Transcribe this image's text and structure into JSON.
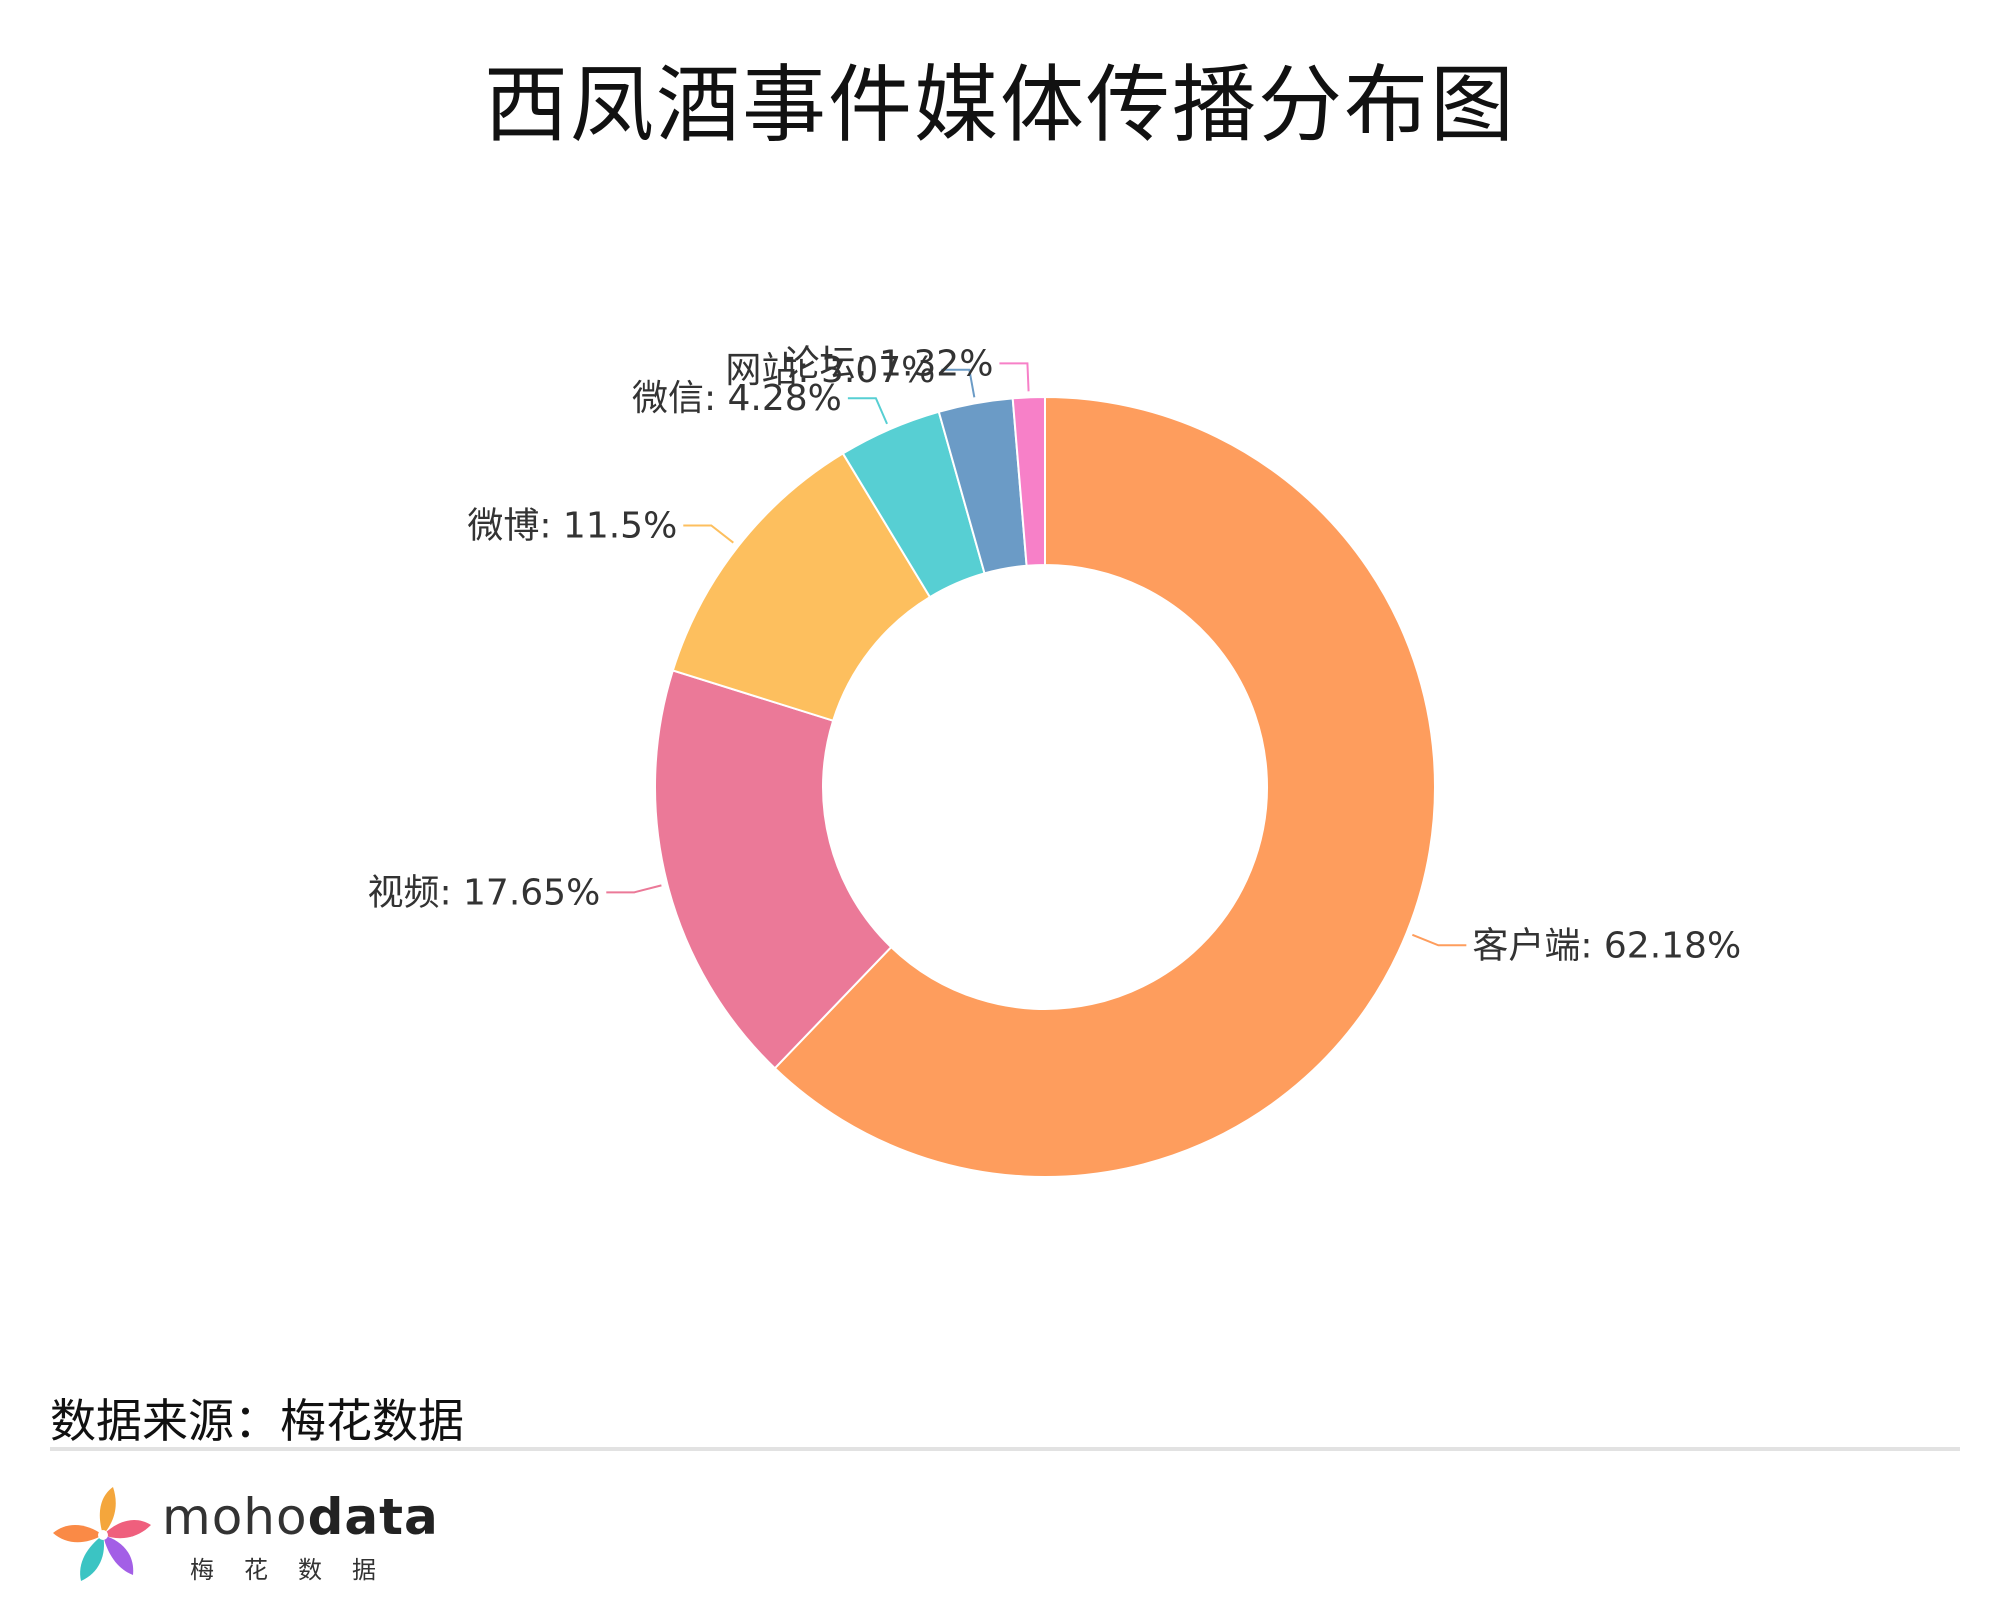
{
  "header": {
    "title": "西凤酒事件媒体传播分布图"
  },
  "chart_data": {
    "type": "pie",
    "title": "西凤酒事件媒体传播分布图",
    "donut": true,
    "slices": [
      {
        "label": "客户端",
        "value": 62.18,
        "display": "客户端: 62.18%",
        "color": "#fe9d5d"
      },
      {
        "label": "视频",
        "value": 17.65,
        "display": "视频: 17.65%",
        "color": "#eb7998"
      },
      {
        "label": "微博",
        "value": 11.5,
        "display": "微博: 11.5%",
        "color": "#fdbf5e"
      },
      {
        "label": "微信",
        "value": 4.28,
        "display": "微信: 4.28%",
        "color": "#57cfd3"
      },
      {
        "label": "网站",
        "value": 3.07,
        "display": "网站: 3.07%",
        "color": "#6b9bc6"
      },
      {
        "label": "论坛",
        "value": 1.32,
        "display": "论坛: 1.32%",
        "color": "#f780c8"
      }
    ]
  },
  "footer": {
    "source": "数据来源：梅花数据",
    "brand_light": "moho",
    "brand_bold": "data",
    "brand_sub": "梅花数据"
  }
}
